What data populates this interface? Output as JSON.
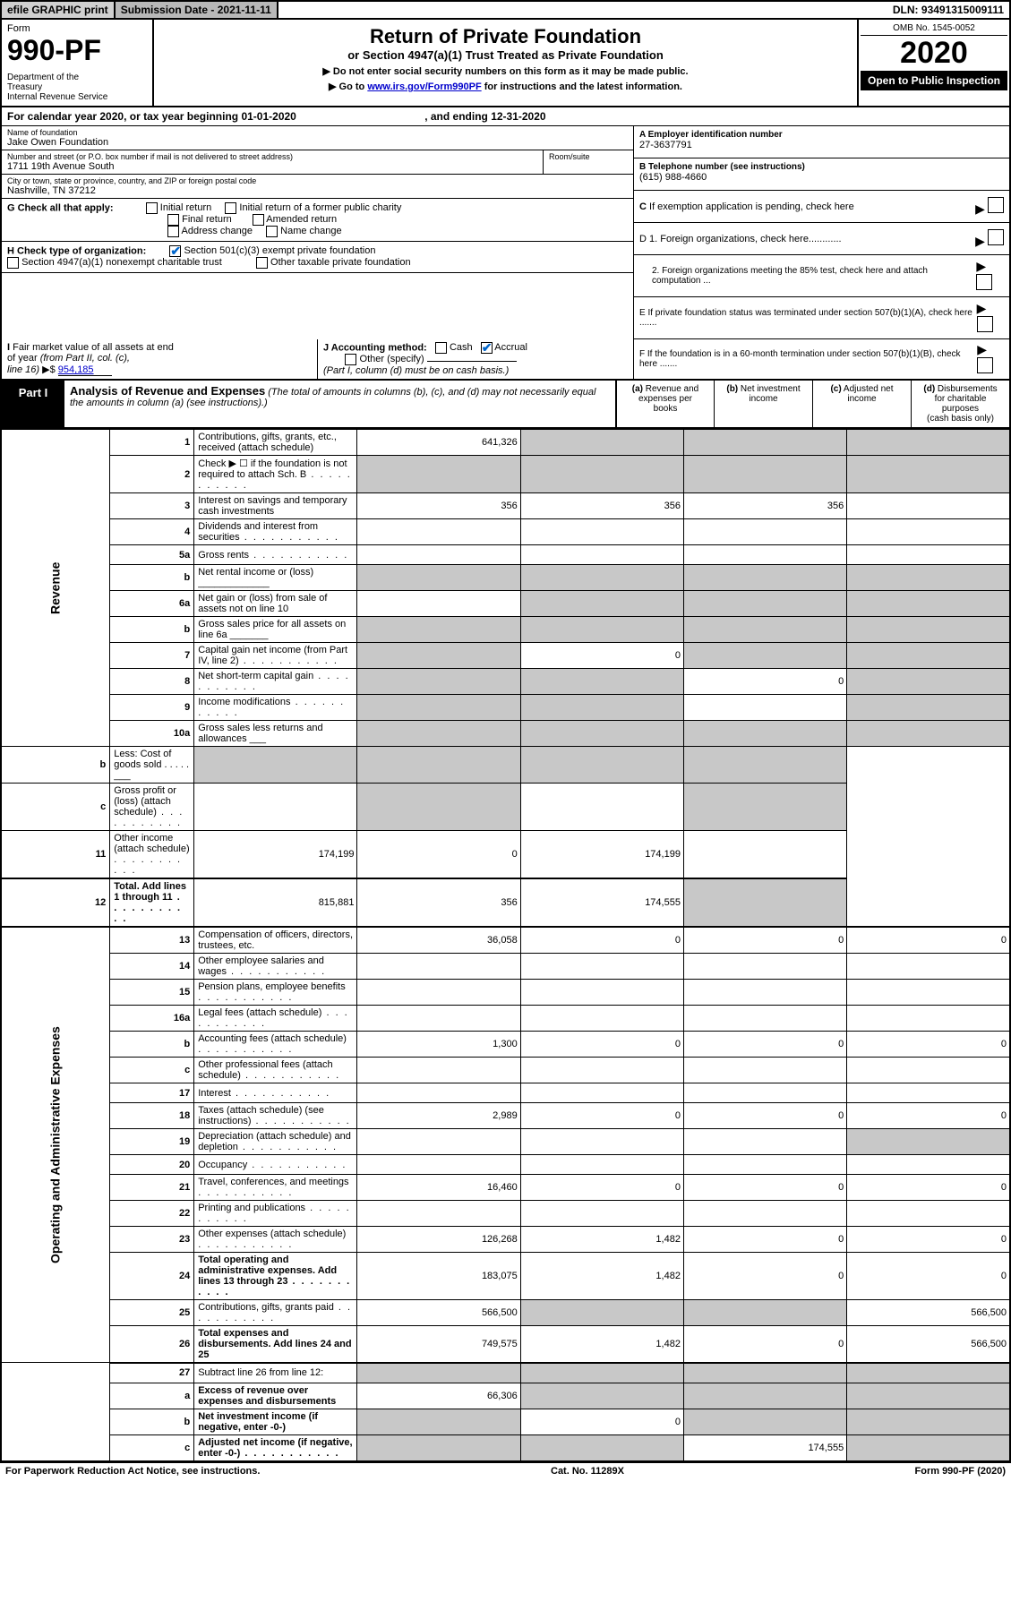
{
  "topbar": {
    "efile": "efile GRAPHIC print",
    "subdate_label": "Submission Date - ",
    "subdate": "2021-11-11",
    "dln_label": "DLN: ",
    "dln": "93491315009111"
  },
  "header": {
    "form_word": "Form",
    "form_num": "990-PF",
    "dept": "Department of the Treasury\nInternal Revenue Service",
    "title": "Return of Private Foundation",
    "subtitle": "or Section 4947(a)(1) Trust Treated as Private Foundation",
    "note1": "▶ Do not enter social security numbers on this form as it may be made public.",
    "note2_pre": "▶ Go to ",
    "note2_link": "www.irs.gov/Form990PF",
    "note2_post": " for instructions and the latest information.",
    "omb": "OMB No. 1545-0052",
    "year": "2020",
    "open": "Open to Public Inspection"
  },
  "calyear": {
    "pre": "For calendar year 2020, or tax year beginning ",
    "begin": "01-01-2020",
    "mid": ", and ending ",
    "end": "12-31-2020"
  },
  "id": {
    "name_label": "Name of foundation",
    "name": "Jake Owen Foundation",
    "addr_label": "Number and street (or P.O. box number if mail is not delivered to street address)",
    "addr": "1711 19th Avenue South",
    "room_label": "Room/suite",
    "room": "",
    "city_label": "City or town, state or province, country, and ZIP or foreign postal code",
    "city": "Nashville, TN  37212",
    "A_label": "A Employer identification number",
    "A": "27-3637791",
    "B_label": "B Telephone number (see instructions)",
    "B": "(615) 988-4660",
    "C": "C If exemption application is pending, check here",
    "D1": "D 1. Foreign organizations, check here............",
    "D2": "2. Foreign organizations meeting the 85% test, check here and attach computation ...",
    "E": "E If private foundation status was terminated under section 507(b)(1)(A), check here .......",
    "F": "F If the foundation is in a 60-month termination under section 507(b)(1)(B), check here ......."
  },
  "G": {
    "label": "G Check all that apply:",
    "opts": [
      "Initial return",
      "Final return",
      "Address change",
      "Initial return of a former public charity",
      "Amended return",
      "Name change"
    ]
  },
  "H": {
    "label": "H Check type of organization:",
    "o1": "Section 501(c)(3) exempt private foundation",
    "o1_checked": true,
    "o2": "Section 4947(a)(1) nonexempt charitable trust",
    "o3": "Other taxable private foundation"
  },
  "I": {
    "label": "I Fair market value of all assets at end of year (from Part II, col. (c), line 16) ▶$",
    "val": "954,185"
  },
  "J": {
    "label": "J Accounting method:",
    "cash": "Cash",
    "accrual": "Accrual",
    "accrual_checked": true,
    "other": "Other (specify)",
    "note": "(Part I, column (d) must be on cash basis.)"
  },
  "partI": {
    "label": "Part I",
    "title": "Analysis of Revenue and Expenses",
    "title_note": "(The total of amounts in columns (b), (c), and (d) may not necessarily equal the amounts in column (a) (see instructions).)",
    "col_a": "(a) Revenue and expenses per books",
    "col_b": "(b) Net investment income",
    "col_c": "(c) Adjusted net income",
    "col_d": "(d) Disbursements for charitable purposes (cash basis only)",
    "side_rev": "Revenue",
    "side_exp": "Operating and Administrative Expenses"
  },
  "rows": [
    {
      "n": "1",
      "d": "Contributions, gifts, grants, etc., received (attach schedule)",
      "a": "641,326",
      "b_grey": true,
      "c_grey": true,
      "d_grey": true
    },
    {
      "n": "2",
      "d": "Check ▶ ☐ if the foundation is not required to attach Sch. B",
      "a_grey": true,
      "b_grey": true,
      "c_grey": true,
      "d_grey": true,
      "dots": true
    },
    {
      "n": "3",
      "d": "Interest on savings and temporary cash investments",
      "a": "356",
      "b": "356",
      "c": "356"
    },
    {
      "n": "4",
      "d": "Dividends and interest from securities",
      "dots": true
    },
    {
      "n": "5a",
      "d": "Gross rents",
      "dots": true
    },
    {
      "n": "b",
      "d": "Net rental income or (loss)  _____________",
      "a_grey": true,
      "b_grey": true,
      "c_grey": true,
      "d_grey": true
    },
    {
      "n": "6a",
      "d": "Net gain or (loss) from sale of assets not on line 10",
      "b_grey": true,
      "c_grey": true,
      "d_grey": true
    },
    {
      "n": "b",
      "d": "Gross sales price for all assets on line 6a _______",
      "a_grey": true,
      "b_grey": true,
      "c_grey": true,
      "d_grey": true
    },
    {
      "n": "7",
      "d": "Capital gain net income (from Part IV, line 2)",
      "dots": true,
      "a_grey": true,
      "b": "0",
      "c_grey": true,
      "d_grey": true
    },
    {
      "n": "8",
      "d": "Net short-term capital gain",
      "dots": true,
      "a_grey": true,
      "b_grey": true,
      "c": "0",
      "d_grey": true
    },
    {
      "n": "9",
      "d": "Income modifications",
      "dots": true,
      "a_grey": true,
      "b_grey": true,
      "d_grey": true
    },
    {
      "n": "10a",
      "d": "Gross sales less returns and allowances  ___",
      "a_grey": true,
      "b_grey": true,
      "c_grey": true,
      "d_grey": true
    },
    {
      "n": "b",
      "d": "Less: Cost of goods sold   . . . . .   ___",
      "a_grey": true,
      "b_grey": true,
      "c_grey": true,
      "d_grey": true
    },
    {
      "n": "c",
      "d": "Gross profit or (loss) (attach schedule)",
      "dots": true,
      "b_grey": true,
      "d_grey": true
    },
    {
      "n": "11",
      "d": "Other income (attach schedule)",
      "dots": true,
      "a": "174,199",
      "b": "0",
      "c": "174,199"
    },
    {
      "n": "12",
      "d": "Total. Add lines 1 through 11",
      "dots": true,
      "bold": true,
      "a": "815,881",
      "b": "356",
      "c": "174,555",
      "d_grey": true,
      "thick": true
    },
    {
      "n": "13",
      "d": "Compensation of officers, directors, trustees, etc.",
      "a": "36,058",
      "b": "0",
      "c": "0",
      "dd": "0",
      "thick": true,
      "exp": true
    },
    {
      "n": "14",
      "d": "Other employee salaries and wages",
      "dots": true,
      "exp": true
    },
    {
      "n": "15",
      "d": "Pension plans, employee benefits",
      "dots": true,
      "exp": true
    },
    {
      "n": "16a",
      "d": "Legal fees (attach schedule)",
      "dots": true,
      "exp": true
    },
    {
      "n": "b",
      "d": "Accounting fees (attach schedule)",
      "dots": true,
      "a": "1,300",
      "b": "0",
      "c": "0",
      "dd": "0",
      "exp": true
    },
    {
      "n": "c",
      "d": "Other professional fees (attach schedule)",
      "dots": true,
      "exp": true
    },
    {
      "n": "17",
      "d": "Interest",
      "dots": true,
      "exp": true
    },
    {
      "n": "18",
      "d": "Taxes (attach schedule) (see instructions)",
      "dots": true,
      "a": "2,989",
      "b": "0",
      "c": "0",
      "dd": "0",
      "exp": true
    },
    {
      "n": "19",
      "d": "Depreciation (attach schedule) and depletion",
      "dots": true,
      "d_grey": true,
      "exp": true
    },
    {
      "n": "20",
      "d": "Occupancy",
      "dots": true,
      "exp": true
    },
    {
      "n": "21",
      "d": "Travel, conferences, and meetings",
      "dots": true,
      "a": "16,460",
      "b": "0",
      "c": "0",
      "dd": "0",
      "exp": true
    },
    {
      "n": "22",
      "d": "Printing and publications",
      "dots": true,
      "exp": true
    },
    {
      "n": "23",
      "d": "Other expenses (attach schedule)",
      "dots": true,
      "a": "126,268",
      "b": "1,482",
      "c": "0",
      "dd": "0",
      "exp": true
    },
    {
      "n": "24",
      "d": "Total operating and administrative expenses. Add lines 13 through 23",
      "dots": true,
      "bold": true,
      "a": "183,075",
      "b": "1,482",
      "c": "0",
      "dd": "0",
      "exp": true
    },
    {
      "n": "25",
      "d": "Contributions, gifts, grants paid",
      "dots": true,
      "a": "566,500",
      "b_grey": true,
      "c_grey": true,
      "dd": "566,500",
      "exp": true
    },
    {
      "n": "26",
      "d": "Total expenses and disbursements. Add lines 24 and 25",
      "bold": true,
      "a": "749,575",
      "b": "1,482",
      "c": "0",
      "dd": "566,500",
      "exp": true,
      "thick_bot": true
    },
    {
      "n": "27",
      "d": "Subtract line 26 from line 12:",
      "a_grey": true,
      "b_grey": true,
      "c_grey": true,
      "d_grey": true,
      "thick": true
    },
    {
      "n": "a",
      "d": "Excess of revenue over expenses and disbursements",
      "bold": true,
      "a": "66,306",
      "b_grey": true,
      "c_grey": true,
      "d_grey": true
    },
    {
      "n": "b",
      "d": "Net investment income (if negative, enter -0-)",
      "bold": true,
      "a_grey": true,
      "b": "0",
      "c_grey": true,
      "d_grey": true
    },
    {
      "n": "c",
      "d": "Adjusted net income (if negative, enter -0-)",
      "bold": true,
      "dots": true,
      "a_grey": true,
      "b_grey": true,
      "c": "174,555",
      "d_grey": true
    }
  ],
  "footer": {
    "left": "For Paperwork Reduction Act Notice, see instructions.",
    "mid": "Cat. No. 11289X",
    "right": "Form 990-PF (2020)"
  }
}
